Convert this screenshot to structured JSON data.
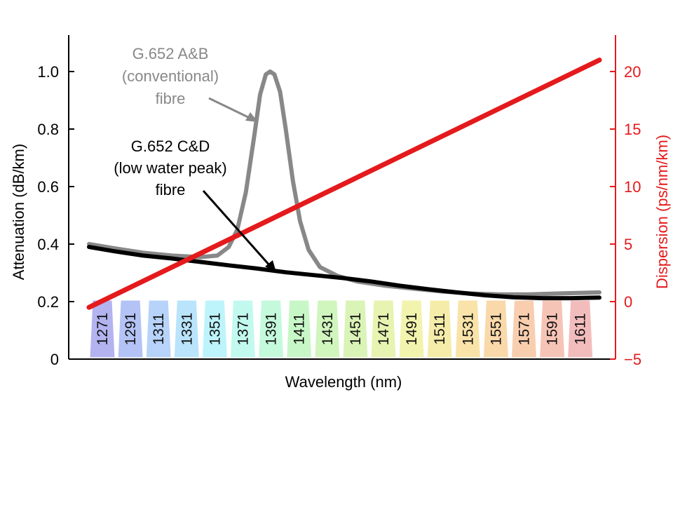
{
  "chart_data": {
    "type": "line",
    "xlabel": "Wavelength (nm)",
    "ylabel_left": "Attenuation (dB/km)",
    "ylabel_right": "Dispersion (ps/nm/km)",
    "x_range": [
      1260,
      1625
    ],
    "y_left_range": [
      0,
      1.1
    ],
    "y_right_range": [
      -5,
      23
    ],
    "y_left_ticks": [
      "0",
      "0.2",
      "0.4",
      "0.6",
      "0.8",
      "1.0"
    ],
    "y_left_tick_values": [
      0,
      0.2,
      0.4,
      0.6,
      0.8,
      1.0
    ],
    "y_right_ticks": [
      "−5",
      "0",
      "5",
      "10",
      "15",
      "20"
    ],
    "y_right_tick_values": [
      -5,
      0,
      5,
      10,
      15,
      20
    ],
    "grid": false,
    "series": [
      {
        "axis": "left",
        "color": "#888888",
        "points": [
          [
            1262,
            0.4
          ],
          [
            1280,
            0.385
          ],
          [
            1300,
            0.37
          ],
          [
            1320,
            0.36
          ],
          [
            1340,
            0.355
          ],
          [
            1352,
            0.36
          ],
          [
            1360,
            0.39
          ],
          [
            1366,
            0.45
          ],
          [
            1372,
            0.58
          ],
          [
            1378,
            0.78
          ],
          [
            1382,
            0.92
          ],
          [
            1386,
            0.99
          ],
          [
            1389,
            1.0
          ],
          [
            1392,
            0.99
          ],
          [
            1396,
            0.93
          ],
          [
            1400,
            0.8
          ],
          [
            1405,
            0.62
          ],
          [
            1410,
            0.48
          ],
          [
            1416,
            0.38
          ],
          [
            1424,
            0.32
          ],
          [
            1436,
            0.29
          ],
          [
            1450,
            0.27
          ],
          [
            1470,
            0.255
          ],
          [
            1490,
            0.245
          ],
          [
            1510,
            0.235
          ],
          [
            1530,
            0.228
          ],
          [
            1550,
            0.225
          ],
          [
            1570,
            0.225
          ],
          [
            1590,
            0.228
          ],
          [
            1620,
            0.232
          ]
        ]
      },
      {
        "axis": "left",
        "color": "#000000",
        "points": [
          [
            1262,
            0.39
          ],
          [
            1280,
            0.375
          ],
          [
            1300,
            0.36
          ],
          [
            1320,
            0.35
          ],
          [
            1340,
            0.338
          ],
          [
            1360,
            0.326
          ],
          [
            1380,
            0.315
          ],
          [
            1400,
            0.302
          ],
          [
            1420,
            0.292
          ],
          [
            1440,
            0.282
          ],
          [
            1460,
            0.27
          ],
          [
            1480,
            0.255
          ],
          [
            1500,
            0.243
          ],
          [
            1520,
            0.232
          ],
          [
            1540,
            0.222
          ],
          [
            1560,
            0.215
          ],
          [
            1580,
            0.212
          ],
          [
            1600,
            0.212
          ],
          [
            1620,
            0.214
          ]
        ]
      },
      {
        "axis": "right",
        "color": "#e41a1c",
        "points": [
          [
            1262,
            -0.5
          ],
          [
            1620,
            21
          ]
        ]
      }
    ],
    "annotations": [
      {
        "lines": [
          "G.652 A&B",
          "(conventional)",
          "fibre"
        ],
        "color": "#888888"
      },
      {
        "lines": [
          "G.652 C&D",
          "(low water peak)",
          "fibre"
        ],
        "color": "#000000"
      }
    ],
    "channels": {
      "labels": [
        "1271",
        "1291",
        "1311",
        "1331",
        "1351",
        "1371",
        "1391",
        "1411",
        "1431",
        "1451",
        "1471",
        "1491",
        "1511",
        "1531",
        "1551",
        "1571",
        "1591",
        "1611"
      ],
      "colors": [
        "#b3b3f0",
        "#b3c3f5",
        "#b7d3fa",
        "#b9e4fb",
        "#bdf4fb",
        "#c2f9ef",
        "#c4f9dc",
        "#c8f7c7",
        "#d0f5bd",
        "#daf3b6",
        "#e7f3b0",
        "#f2f3ad",
        "#f6eca9",
        "#f9e3a8",
        "#f9d8aa",
        "#f8ceaf",
        "#f6c4b6",
        "#f3bcbc"
      ]
    },
    "colors": {
      "left_axis": "#000000",
      "right_axis": "#e41a1c"
    }
  }
}
